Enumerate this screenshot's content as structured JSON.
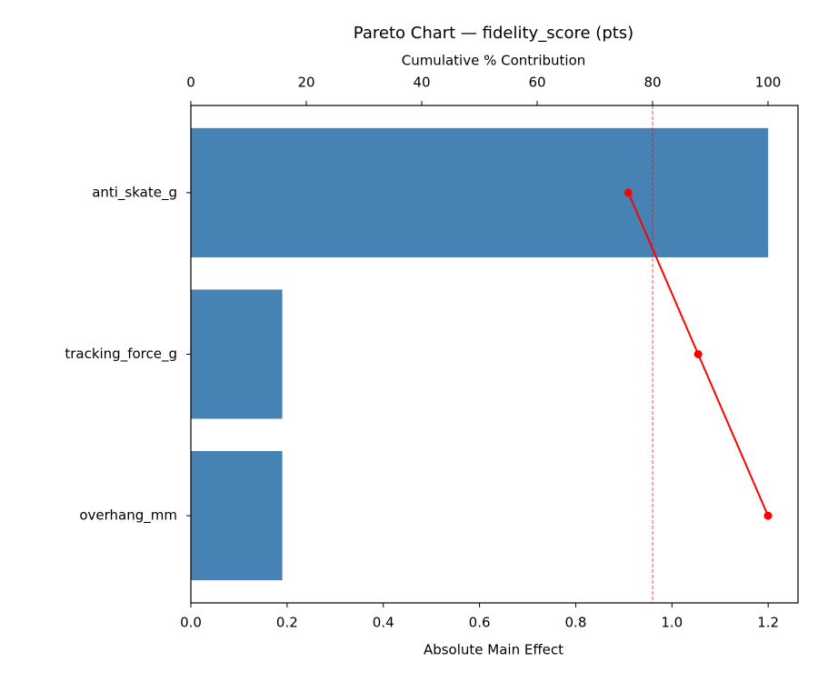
{
  "chart_data": {
    "type": "pareto",
    "title": "Pareto Chart — fidelity_score (pts)",
    "xlabel": "Absolute Main Effect",
    "x2label": "Cumulative % Contribution",
    "categories": [
      "anti_skate_g",
      "tracking_force_g",
      "overhang_mm"
    ],
    "values": [
      1.2,
      0.19,
      0.19
    ],
    "color": "#4682b4",
    "xlim": [
      0,
      1.262
    ],
    "xticks": [
      {
        "value": 0,
        "label": "0.0"
      },
      0.2,
      0.4,
      0.6,
      0.8,
      {
        "value": 1,
        "label": "1.0"
      },
      1.2
    ],
    "x2lim": [
      0,
      105.2
    ],
    "x2ticks": [
      0,
      20,
      40,
      60,
      80,
      100
    ],
    "cumulative": {
      "values": [
        75.8,
        87.9,
        100
      ],
      "color": "#ff0000"
    },
    "threshold": {
      "value": 80,
      "color": "#ff0000"
    }
  }
}
